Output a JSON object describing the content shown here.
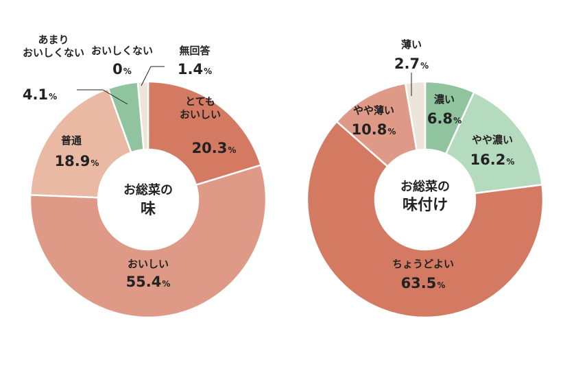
{
  "colors": {
    "coral_dark": "#D47A62",
    "coral_mid": "#DE9A87",
    "peach": "#E9B9A4",
    "mint": "#8FC49F",
    "mint_light": "#B5DBBE",
    "beige": "#EDE4DA",
    "text": "#222222"
  },
  "chart_data": [
    {
      "type": "pie",
      "title": "お総菜の味",
      "center_lines": [
        "お総菜の",
        "味"
      ],
      "slices": [
        {
          "label": "とてもおいしい",
          "label_lines": [
            "とても",
            "おいしい"
          ],
          "value": 20.3,
          "display": "20.3",
          "color": "#D47A62"
        },
        {
          "label": "おいしい",
          "label_lines": [
            "おいしい"
          ],
          "value": 55.4,
          "display": "55.4",
          "color": "#DE9A87"
        },
        {
          "label": "普通",
          "label_lines": [
            "普通"
          ],
          "value": 18.9,
          "display": "18.9",
          "color": "#E9B9A4"
        },
        {
          "label": "あまりおいしくない",
          "label_lines": [
            "あまり",
            "おいしくない"
          ],
          "value": 4.1,
          "display": "4.1",
          "color": "#8FC49F"
        },
        {
          "label": "おいしくない",
          "label_lines": [
            "おいしくない"
          ],
          "value": 0,
          "display": "0",
          "color": "#8FC49F"
        },
        {
          "label": "無回答",
          "label_lines": [
            "無回答"
          ],
          "value": 1.4,
          "display": "1.4",
          "color": "#EDE4DA"
        }
      ],
      "unit": "%"
    },
    {
      "type": "pie",
      "title": "お総菜の味付け",
      "center_lines": [
        "お総菜の",
        "味付け"
      ],
      "slices": [
        {
          "label": "濃い",
          "label_lines": [
            "濃い"
          ],
          "value": 6.8,
          "display": "6.8",
          "color": "#8FC49F"
        },
        {
          "label": "やや濃い",
          "label_lines": [
            "やや濃い"
          ],
          "value": 16.2,
          "display": "16.2",
          "color": "#B5DBBE"
        },
        {
          "label": "ちょうどよい",
          "label_lines": [
            "ちょうどよい"
          ],
          "value": 63.5,
          "display": "63.5",
          "color": "#D47A62"
        },
        {
          "label": "やや薄い",
          "label_lines": [
            "やや薄い"
          ],
          "value": 10.8,
          "display": "10.8",
          "color": "#DE9A87"
        },
        {
          "label": "薄い",
          "label_lines": [
            "薄い"
          ],
          "value": 2.7,
          "display": "2.7",
          "color": "#EDE4DA"
        }
      ],
      "unit": "%"
    }
  ]
}
